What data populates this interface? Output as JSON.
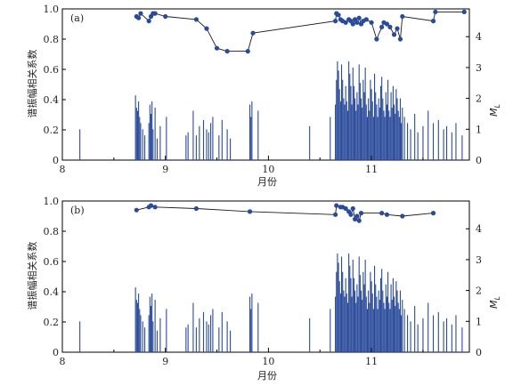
{
  "chart_data": [
    {
      "type": "line",
      "panel_label": "(a)",
      "xlabel": "月份",
      "ylabel": "谱振幅相关系数",
      "y2label": "M",
      "y2label_sub": "L",
      "xlim": [
        8,
        11.95
      ],
      "ylim": [
        0,
        1.0
      ],
      "y2lim": [
        0,
        4.9
      ],
      "xticks": [
        "8",
        "9",
        "10",
        "11"
      ],
      "yticks": [
        "0",
        "0.2",
        "0.4",
        "0.6",
        "0.8",
        "1.0"
      ],
      "y2ticks": [
        "0",
        "1",
        "2",
        "3",
        "4"
      ],
      "series": [
        {
          "role": "correlation",
          "style": "line-with-markers",
          "color": "#2a4a9a",
          "x": [
            8.72,
            8.74,
            8.76,
            8.84,
            8.86,
            8.88,
            8.9,
            9.0,
            9.3,
            9.4,
            9.5,
            9.6,
            9.8,
            9.85,
            10.65,
            10.66,
            10.68,
            10.7,
            10.72,
            10.75,
            10.78,
            10.8,
            10.82,
            10.84,
            10.86,
            10.88,
            10.9,
            10.92,
            10.95,
            11.0,
            11.05,
            11.1,
            11.12,
            11.15,
            11.18,
            11.22,
            11.25,
            11.28,
            11.3,
            11.6,
            11.62,
            11.9
          ],
          "y": [
            0.95,
            0.94,
            0.97,
            0.92,
            0.95,
            0.97,
            0.97,
            0.95,
            0.93,
            0.87,
            0.74,
            0.72,
            0.72,
            0.84,
            0.92,
            0.97,
            0.96,
            0.93,
            0.92,
            0.91,
            0.93,
            0.92,
            0.9,
            0.93,
            0.91,
            0.94,
            0.9,
            0.92,
            0.93,
            0.91,
            0.8,
            0.88,
            0.91,
            0.9,
            0.88,
            0.83,
            0.87,
            0.8,
            0.95,
            0.92,
            0.98,
            0.98
          ]
        },
        {
          "role": "magnitude",
          "style": "bars",
          "color": "#2a4a9a",
          "x": [
            8.17,
            8.71,
            8.72,
            8.73,
            8.74,
            8.75,
            8.76,
            8.78,
            8.8,
            8.84,
            8.85,
            8.86,
            8.87,
            8.88,
            8.9,
            8.92,
            8.95,
            9.01,
            9.2,
            9.22,
            9.27,
            9.3,
            9.33,
            9.37,
            9.4,
            9.42,
            9.44,
            9.46,
            9.52,
            9.55,
            9.6,
            9.63,
            9.82,
            9.83,
            9.84,
            9.9,
            10.4,
            10.6,
            10.65,
            10.66,
            10.67,
            10.68,
            10.69,
            10.7,
            10.71,
            10.72,
            10.73,
            10.74,
            10.75,
            10.76,
            10.77,
            10.78,
            10.79,
            10.8,
            10.81,
            10.82,
            10.83,
            10.84,
            10.85,
            10.86,
            10.87,
            10.88,
            10.89,
            10.9,
            10.91,
            10.92,
            10.93,
            10.94,
            10.95,
            10.96,
            10.97,
            10.98,
            10.99,
            11.0,
            11.01,
            11.02,
            11.03,
            11.04,
            11.05,
            11.06,
            11.07,
            11.08,
            11.09,
            11.1,
            11.11,
            11.12,
            11.13,
            11.14,
            11.15,
            11.16,
            11.17,
            11.18,
            11.19,
            11.2,
            11.21,
            11.22,
            11.23,
            11.24,
            11.25,
            11.26,
            11.27,
            11.28,
            11.29,
            11.3,
            11.32,
            11.35,
            11.38,
            11.42,
            11.45,
            11.5,
            11.55,
            11.6,
            11.65,
            11.7,
            11.73,
            11.78,
            11.82,
            11.88
          ],
          "y": [
            1.0,
            2.1,
            1.7,
            1.6,
            1.9,
            1.4,
            1.2,
            1.0,
            0.8,
            1.2,
            1.8,
            1.5,
            1.9,
            1.0,
            1.7,
            0.7,
            1.1,
            1.4,
            0.8,
            0.9,
            1.6,
            0.8,
            1.1,
            1.3,
            1.0,
            0.9,
            1.2,
            1.4,
            0.8,
            1.3,
            1.0,
            0.7,
            1.8,
            1.4,
            1.9,
            1.6,
            1.1,
            1.4,
            1.8,
            2.6,
            3.2,
            2.9,
            2.3,
            1.9,
            3.1,
            2.6,
            2.0,
            1.8,
            2.4,
            1.9,
            1.6,
            3.2,
            2.8,
            2.4,
            1.8,
            3.0,
            2.4,
            2.0,
            1.6,
            2.2,
            1.8,
            3.1,
            2.5,
            2.0,
            1.7,
            2.6,
            2.2,
            3.0,
            1.8,
            1.4,
            2.0,
            1.6,
            2.6,
            2.3,
            1.9,
            1.4,
            2.8,
            2.2,
            1.8,
            1.4,
            2.0,
            1.7,
            2.4,
            2.7,
            2.0,
            1.6,
            1.4,
            2.2,
            1.8,
            2.6,
            1.6,
            1.4,
            2.2,
            1.7,
            2.4,
            1.8,
            1.5,
            2.3,
            2.0,
            1.6,
            1.4,
            2.0,
            1.2,
            1.7,
            1.4,
            1.2,
            1.0,
            1.5,
            0.9,
            1.1,
            1.6,
            1.2,
            1.3,
            1.0,
            1.1,
            0.9,
            1.2,
            0.8
          ]
        }
      ]
    },
    {
      "type": "line",
      "panel_label": "(b)",
      "xlabel": "月份",
      "ylabel": "谱振幅相关系数",
      "y2label": "M",
      "y2label_sub": "L",
      "xlim": [
        8,
        11.95
      ],
      "ylim": [
        0,
        1.0
      ],
      "y2lim": [
        0,
        4.9
      ],
      "xticks": [
        "8",
        "9",
        "10",
        "11"
      ],
      "yticks": [
        "0",
        "0.2",
        "0.4",
        "0.6",
        "0.8",
        "1.0"
      ],
      "y2ticks": [
        "0",
        "1",
        "2",
        "3",
        "4"
      ],
      "series": [
        {
          "role": "correlation",
          "style": "line-with-markers",
          "color": "#2a4a9a",
          "x": [
            8.72,
            8.84,
            8.86,
            8.9,
            9.3,
            9.82,
            10.65,
            10.66,
            10.7,
            10.72,
            10.75,
            10.78,
            10.8,
            10.82,
            10.84,
            10.86,
            10.88,
            10.9,
            11.1,
            11.15,
            11.3,
            11.6
          ],
          "y": [
            0.94,
            0.96,
            0.97,
            0.96,
            0.95,
            0.93,
            0.91,
            0.97,
            0.96,
            0.96,
            0.95,
            0.93,
            0.91,
            0.95,
            0.88,
            0.9,
            0.87,
            0.92,
            0.92,
            0.91,
            0.9,
            0.92
          ]
        },
        {
          "role": "magnitude",
          "style": "bars",
          "color": "#2a4a9a",
          "x": [
            8.17,
            8.71,
            8.72,
            8.73,
            8.74,
            8.75,
            8.76,
            8.78,
            8.8,
            8.84,
            8.85,
            8.86,
            8.87,
            8.88,
            8.9,
            8.92,
            8.95,
            9.01,
            9.2,
            9.22,
            9.27,
            9.3,
            9.33,
            9.37,
            9.4,
            9.42,
            9.44,
            9.46,
            9.52,
            9.55,
            9.6,
            9.63,
            9.82,
            9.83,
            9.84,
            9.9,
            10.4,
            10.6,
            10.65,
            10.66,
            10.67,
            10.68,
            10.69,
            10.7,
            10.71,
            10.72,
            10.73,
            10.74,
            10.75,
            10.76,
            10.77,
            10.78,
            10.79,
            10.8,
            10.81,
            10.82,
            10.83,
            10.84,
            10.85,
            10.86,
            10.87,
            10.88,
            10.89,
            10.9,
            10.91,
            10.92,
            10.93,
            10.94,
            10.95,
            10.96,
            10.97,
            10.98,
            10.99,
            11.0,
            11.01,
            11.02,
            11.03,
            11.04,
            11.05,
            11.06,
            11.07,
            11.08,
            11.09,
            11.1,
            11.11,
            11.12,
            11.13,
            11.14,
            11.15,
            11.16,
            11.17,
            11.18,
            11.19,
            11.2,
            11.21,
            11.22,
            11.23,
            11.24,
            11.25,
            11.26,
            11.27,
            11.28,
            11.29,
            11.3,
            11.32,
            11.35,
            11.38,
            11.42,
            11.45,
            11.5,
            11.55,
            11.6,
            11.65,
            11.7,
            11.73,
            11.78,
            11.82,
            11.88
          ],
          "y": [
            1.0,
            2.1,
            1.7,
            1.6,
            1.9,
            1.4,
            1.2,
            1.0,
            0.8,
            1.2,
            1.8,
            1.5,
            1.9,
            1.0,
            1.7,
            0.7,
            1.1,
            1.4,
            0.8,
            0.9,
            1.6,
            0.8,
            1.1,
            1.3,
            1.0,
            0.9,
            1.2,
            1.4,
            0.8,
            1.3,
            1.0,
            0.7,
            1.8,
            1.4,
            1.9,
            1.6,
            1.1,
            1.4,
            1.8,
            2.6,
            3.2,
            2.9,
            2.3,
            1.9,
            3.1,
            2.6,
            2.0,
            1.8,
            2.4,
            1.9,
            1.6,
            3.2,
            2.8,
            2.4,
            1.8,
            3.0,
            2.4,
            2.0,
            1.6,
            2.2,
            1.8,
            3.1,
            2.5,
            2.0,
            1.7,
            2.6,
            2.2,
            3.0,
            1.8,
            1.4,
            2.0,
            1.6,
            2.6,
            2.3,
            1.9,
            1.4,
            2.8,
            2.2,
            1.8,
            1.4,
            2.0,
            1.7,
            2.4,
            2.7,
            2.0,
            1.6,
            1.4,
            2.2,
            1.8,
            2.6,
            1.6,
            1.4,
            2.2,
            1.7,
            2.4,
            1.8,
            1.5,
            2.3,
            2.0,
            1.6,
            1.4,
            2.0,
            1.2,
            1.7,
            1.4,
            1.2,
            1.0,
            1.5,
            0.9,
            1.1,
            1.6,
            1.2,
            1.3,
            1.0,
            1.1,
            0.9,
            1.2,
            0.8
          ]
        }
      ]
    }
  ]
}
